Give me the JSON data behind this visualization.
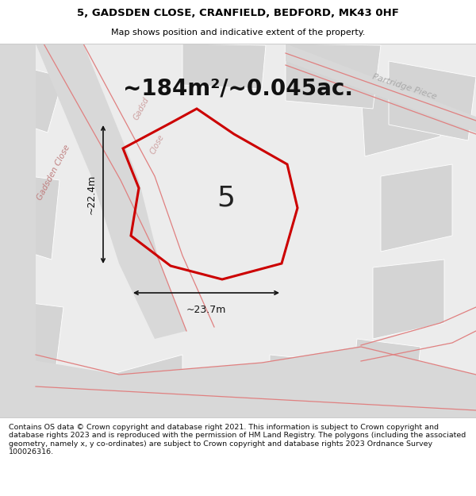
{
  "title_line1": "5, GADSDEN CLOSE, CRANFIELD, BEDFORD, MK43 0HF",
  "title_line2": "Map shows position and indicative extent of the property.",
  "area_text": "~184m²/~0.045ac.",
  "plot_number": "5",
  "dim_horizontal": "~23.7m",
  "dim_vertical": "~22.4m",
  "footer_text": "Contains OS data © Crown copyright and database right 2021. This information is subject to Crown copyright and database rights 2023 and is reproduced with the permission of HM Land Registry. The polygons (including the associated geometry, namely x, y co-ordinates) are subject to Crown copyright and database rights 2023 Ordnance Survey 100026316.",
  "bg_color": "#ececec",
  "plot_line_color": "#cc0000",
  "road_label_color": "#c08080",
  "field_label_color": "#aaaaaa",
  "building_fill": "#d4d4d4",
  "building_edge": "#ffffff",
  "title_bg": "#ffffff",
  "footer_bg": "#ffffff",
  "separator_color": "#cccccc"
}
